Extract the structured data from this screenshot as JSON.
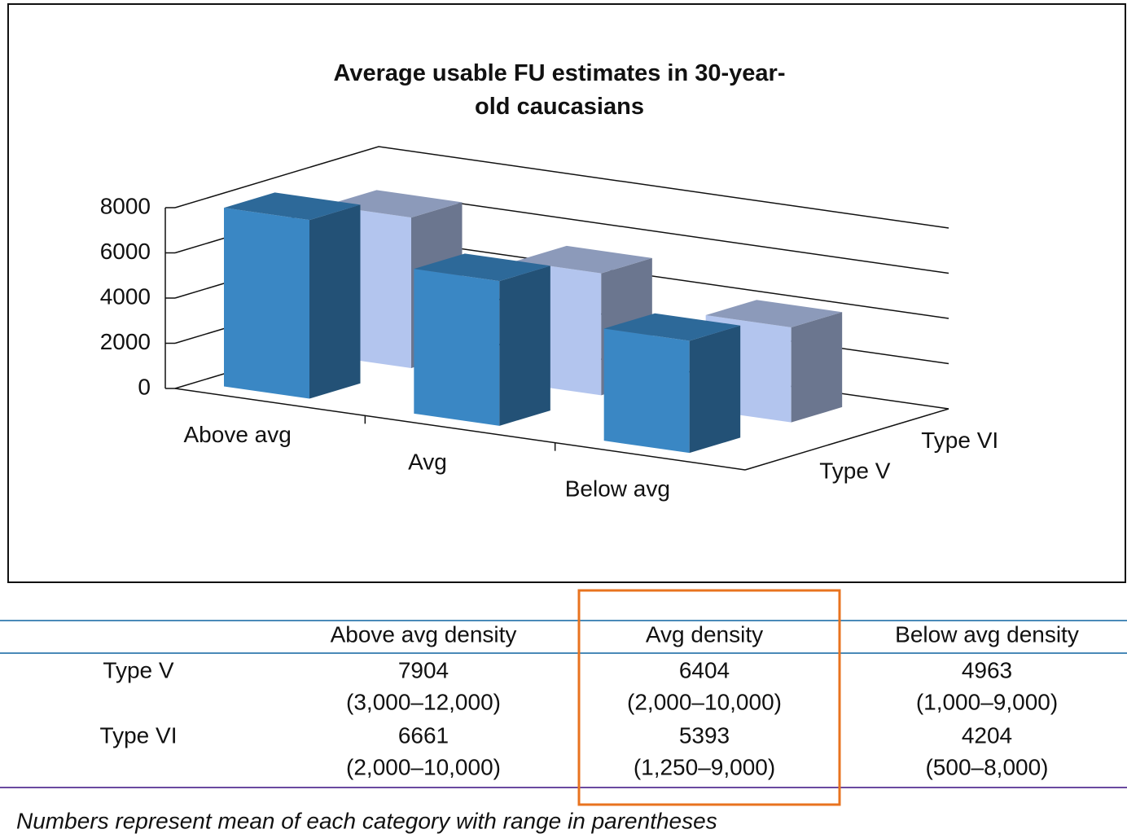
{
  "chart_data": {
    "type": "bar3d",
    "title": "Average usable FU estimates in 30-year-old caucasians",
    "categories": [
      "Above avg",
      "Avg",
      "Below avg"
    ],
    "series": [
      {
        "name": "Type V",
        "color": "#3a87c4",
        "values": [
          7904,
          6404,
          4963
        ]
      },
      {
        "name": "Type VI",
        "color": "#b3c5ee",
        "values": [
          6661,
          5393,
          4204
        ]
      }
    ],
    "ylim": [
      0,
      8000
    ],
    "yticks": [
      0,
      2000,
      4000,
      6000,
      8000
    ],
    "grid": true
  },
  "table": {
    "columns": [
      "Above avg density",
      "Avg density",
      "Below avg density"
    ],
    "ranges": [
      [
        "(3,000–12,000)",
        "(2,000–10,000)",
        "(1,000–9,000)"
      ],
      [
        "(2,000–10,000)",
        "(1,250–9,000)",
        "(500–8,000)"
      ]
    ]
  },
  "footnote": "Numbers represent mean of each category with range in parentheses"
}
